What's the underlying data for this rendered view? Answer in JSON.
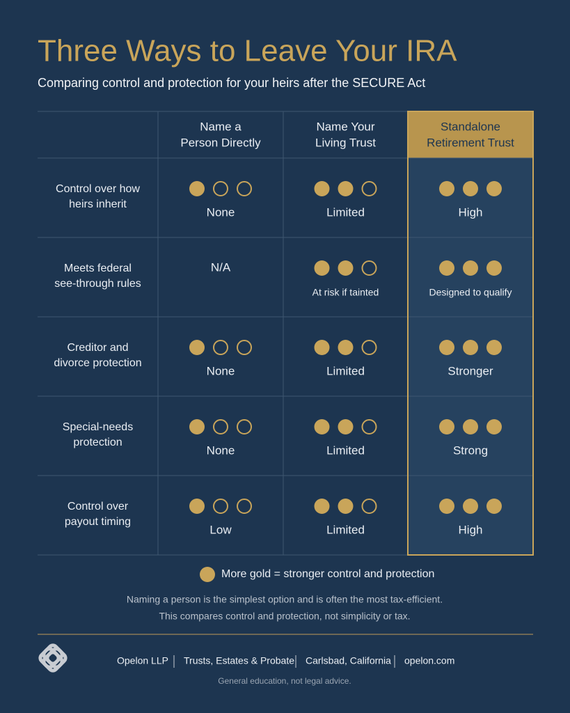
{
  "header": {
    "title": "Three Ways to Leave Your IRA",
    "subtitle": "Comparing control and protection for your heirs after the SECURE Act"
  },
  "table": {
    "max_score": 3,
    "highlight_column": 2,
    "columns": [
      [
        "Name a",
        "Person Directly"
      ],
      [
        "Name Your",
        "Living Trust"
      ],
      [
        "Standalone",
        "Retirement Trust"
      ]
    ],
    "rows": [
      {
        "label": [
          "Control over how",
          "heirs inherit"
        ],
        "cells": [
          {
            "score": 1,
            "text": "None"
          },
          {
            "score": 2,
            "text": "Limited"
          },
          {
            "score": 3,
            "text": "High"
          }
        ]
      },
      {
        "label": [
          "Meets federal",
          "see-through rules"
        ],
        "cells": [
          {
            "text": "N/A"
          },
          {
            "score": 2,
            "note": "At risk if tainted"
          },
          {
            "score": 3,
            "note": "Designed to qualify"
          }
        ]
      },
      {
        "label": [
          "Creditor and",
          "divorce protection"
        ],
        "cells": [
          {
            "score": 1,
            "text": "None"
          },
          {
            "score": 2,
            "text": "Limited"
          },
          {
            "score": 3,
            "text": "Stronger"
          }
        ]
      },
      {
        "label": [
          "Special-needs",
          "protection"
        ],
        "cells": [
          {
            "score": 1,
            "text": "None"
          },
          {
            "score": 2,
            "text": "Limited"
          },
          {
            "score": 3,
            "text": "Strong"
          }
        ]
      },
      {
        "label": [
          "Control over",
          "payout timing"
        ],
        "cells": [
          {
            "score": 1,
            "text": "Low"
          },
          {
            "score": 2,
            "text": "Limited"
          },
          {
            "score": 3,
            "text": "High"
          }
        ]
      }
    ]
  },
  "legend": "More gold = stronger control and protection",
  "notes": [
    "Naming a person is the simplest option and is often the most tax-efficient.",
    "This compares control and protection, not simplicity or tax."
  ],
  "footer": {
    "items": [
      "Opelon LLP",
      "Trusts, Estates & Probate",
      "Carlsbad, California",
      "opelon.com"
    ],
    "disclaimer": "General education, not legal advice."
  }
}
